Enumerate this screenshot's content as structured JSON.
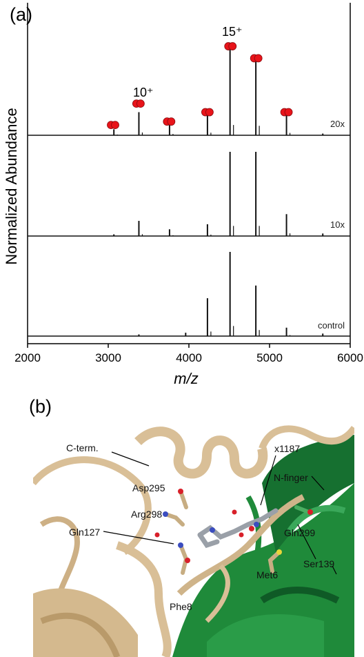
{
  "panel_a": {
    "label": "(a)",
    "ylabel": "Normalized  Abundance",
    "xlabel": "m/z",
    "charge_labels": [
      "10⁺",
      "15⁺"
    ]
  },
  "panel_b": {
    "label": "(b)",
    "residue_labels": [
      "C-term.",
      "x1187",
      "N-finger",
      "Asp295",
      "Arg298",
      "Gln127",
      "Gln299",
      "Ser139",
      "Met6",
      "Phe8"
    ]
  },
  "colors": {
    "trace": "#111111",
    "charge_marker": "#e8141a",
    "protein_tan": "#d9bf97",
    "protein_green": "#1f8a3a",
    "background": "#ffffff"
  },
  "chart_data": {
    "type": "line",
    "title": "",
    "xlabel": "m/z",
    "ylabel": "Normalized  Abundance",
    "xlim": [
      2000,
      6000
    ],
    "xticks": [
      2000,
      3000,
      4000,
      5000,
      6000
    ],
    "grid": false,
    "legend": "none",
    "series": [
      {
        "name": "20x",
        "peaks": [
          {
            "x": 3070,
            "y": 0.07
          },
          {
            "x": 3380,
            "y": 0.27
          },
          {
            "x": 3760,
            "y": 0.13
          },
          {
            "x": 4230,
            "y": 0.25
          },
          {
            "x": 4510,
            "y": 1.0
          },
          {
            "x": 4830,
            "y": 0.92
          },
          {
            "x": 5210,
            "y": 0.23
          },
          {
            "x": 5660,
            "y": 0.02
          }
        ],
        "charge_state_markers": [
          {
            "x": 3060,
            "y": 0.12
          },
          {
            "x": 3375,
            "y": 0.37
          },
          {
            "x": 3755,
            "y": 0.16
          },
          {
            "x": 4230,
            "y": 0.27
          },
          {
            "x": 4515,
            "y": 1.04
          },
          {
            "x": 4835,
            "y": 0.9
          },
          {
            "x": 5210,
            "y": 0.27
          }
        ]
      },
      {
        "name": "10x",
        "peaks": [
          {
            "x": 3070,
            "y": 0.02
          },
          {
            "x": 3380,
            "y": 0.18
          },
          {
            "x": 3760,
            "y": 0.08
          },
          {
            "x": 4230,
            "y": 0.14
          },
          {
            "x": 4510,
            "y": 1.0
          },
          {
            "x": 4830,
            "y": 1.0
          },
          {
            "x": 5210,
            "y": 0.26
          },
          {
            "x": 5660,
            "y": 0.03
          }
        ]
      },
      {
        "name": "control",
        "peaks": [
          {
            "x": 3380,
            "y": 0.02
          },
          {
            "x": 3960,
            "y": 0.04
          },
          {
            "x": 4230,
            "y": 0.45
          },
          {
            "x": 4510,
            "y": 1.0
          },
          {
            "x": 4830,
            "y": 0.6
          },
          {
            "x": 5210,
            "y": 0.1
          },
          {
            "x": 5660,
            "y": 0.03
          }
        ]
      }
    ]
  }
}
